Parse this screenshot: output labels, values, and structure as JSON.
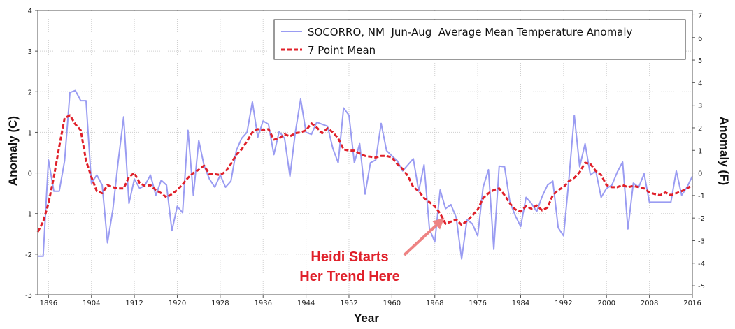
{
  "chart_data": {
    "type": "line",
    "xlabel": "Year",
    "ylabel_left": "Anomaly (C)",
    "ylabel_right": "Anomaly (F)",
    "xlim": [
      1894,
      2016
    ],
    "ylim_left": [
      -3,
      4
    ],
    "ylim_right": [
      -5.4,
      7.2
    ],
    "x_ticks": [
      "1896",
      "1904",
      "1912",
      "1920",
      "1928",
      "1936",
      "1944",
      "1952",
      "1960",
      "1968",
      "1976",
      "1984",
      "1992",
      "2000",
      "2008",
      "2016"
    ],
    "y_ticks_left": [
      "4",
      "3",
      "2",
      "1",
      "0",
      "-1",
      "-2",
      "-3"
    ],
    "y_ticks_right": [
      "7",
      "6",
      "5",
      "4",
      "3",
      "2",
      "1",
      "0",
      "-1",
      "-2",
      "-3",
      "-4",
      "-5"
    ],
    "grid": true,
    "legend_position": "top-right",
    "colors": {
      "annual": "#9a9cf2",
      "mean": "#e0202a",
      "zero_line": "#b9b9b9",
      "grid": "#cfcfcf",
      "annotation": "#e0202a",
      "annotation_arrow": "#ee8383"
    },
    "series": [
      {
        "name": "SOCORRO, NM  Jun-Aug  Average Mean Temperature Anomaly",
        "style": "solid",
        "x": [
          1894,
          1895,
          1896,
          1897,
          1898,
          1899,
          1900,
          1901,
          1902,
          1903,
          1904,
          1905,
          1906,
          1907,
          1908,
          1909,
          1910,
          1911,
          1912,
          1913,
          1914,
          1915,
          1916,
          1917,
          1918,
          1919,
          1920,
          1921,
          1922,
          1923,
          1924,
          1925,
          1926,
          1927,
          1928,
          1929,
          1930,
          1931,
          1932,
          1933,
          1934,
          1935,
          1936,
          1937,
          1938,
          1939,
          1940,
          1941,
          1942,
          1943,
          1944,
          1945,
          1946,
          1947,
          1948,
          1949,
          1950,
          1951,
          1952,
          1953,
          1954,
          1955,
          1956,
          1957,
          1958,
          1959,
          1960,
          1961,
          1962,
          1963,
          1964,
          1965,
          1966,
          1967,
          1968,
          1969,
          1970,
          1971,
          1972,
          1973,
          1974,
          1975,
          1976,
          1977,
          1978,
          1979,
          1980,
          1981,
          1982,
          1983,
          1984,
          1985,
          1986,
          1987,
          1988,
          1989,
          1990,
          1991,
          1992,
          1993,
          1994,
          1995,
          1996,
          1997,
          1998,
          1999,
          2000,
          2001,
          2002,
          2003,
          2004,
          2005,
          2006,
          2007,
          2008,
          2009,
          2010,
          2011,
          2012,
          2013,
          2014,
          2015,
          2016
        ],
        "values": [
          -2.05,
          -2.05,
          0.32,
          -0.45,
          -0.45,
          0.3,
          1.98,
          2.03,
          1.78,
          1.78,
          -0.25,
          -0.05,
          -0.3,
          -1.72,
          -0.9,
          0.3,
          1.38,
          -0.75,
          -0.15,
          -0.38,
          -0.3,
          -0.05,
          -0.55,
          -0.18,
          -0.3,
          -1.42,
          -0.82,
          -0.98,
          1.05,
          -0.55,
          0.8,
          0.18,
          -0.15,
          -0.35,
          -0.05,
          -0.35,
          -0.2,
          0.55,
          0.85,
          1.0,
          1.75,
          0.88,
          1.28,
          1.2,
          0.45,
          1.02,
          0.85,
          -0.08,
          1.0,
          1.82,
          1.0,
          0.95,
          1.25,
          1.2,
          1.15,
          0.6,
          0.25,
          1.6,
          1.42,
          0.25,
          0.72,
          -0.52,
          0.25,
          0.32,
          1.22,
          0.55,
          0.42,
          0.3,
          0.05,
          0.2,
          0.35,
          -0.45,
          0.2,
          -1.38,
          -1.7,
          -0.42,
          -0.88,
          -0.78,
          -1.1,
          -2.12,
          -1.15,
          -1.25,
          -1.55,
          -0.35,
          0.08,
          -1.88,
          0.17,
          0.15,
          -0.72,
          -1.05,
          -1.32,
          -0.6,
          -0.75,
          -0.95,
          -0.58,
          -0.3,
          -0.2,
          -1.35,
          -1.55,
          -0.15,
          1.42,
          0.15,
          0.72,
          -0.05,
          0.05,
          -0.6,
          -0.38,
          -0.3,
          0.02,
          0.27,
          -1.38,
          -0.25,
          -0.35,
          -0.02,
          -0.72,
          -0.72,
          -0.72,
          -0.72,
          -0.72,
          0.05,
          -0.55,
          -0.35,
          -0.08
        ]
      },
      {
        "name": "7 Point Mean",
        "style": "dashed",
        "x": [
          1894,
          1895,
          1896,
          1897,
          1898,
          1899,
          1900,
          1901,
          1902,
          1903,
          1904,
          1905,
          1906,
          1907,
          1908,
          1909,
          1910,
          1911,
          1912,
          1913,
          1914,
          1915,
          1916,
          1917,
          1918,
          1919,
          1920,
          1921,
          1922,
          1923,
          1924,
          1925,
          1926,
          1927,
          1928,
          1929,
          1930,
          1931,
          1932,
          1933,
          1934,
          1935,
          1936,
          1937,
          1938,
          1939,
          1940,
          1941,
          1942,
          1943,
          1944,
          1945,
          1946,
          1947,
          1948,
          1949,
          1950,
          1951,
          1952,
          1953,
          1954,
          1955,
          1956,
          1957,
          1958,
          1959,
          1960,
          1961,
          1962,
          1963,
          1964,
          1965,
          1966,
          1967,
          1968,
          1969,
          1970,
          1971,
          1972,
          1973,
          1974,
          1975,
          1976,
          1977,
          1978,
          1979,
          1980,
          1981,
          1982,
          1983,
          1984,
          1985,
          1986,
          1987,
          1988,
          1989,
          1990,
          1991,
          1992,
          1993,
          1994,
          1995,
          1996,
          1997,
          1998,
          1999,
          2000,
          2001,
          2002,
          2003,
          2004,
          2005,
          2006,
          2007,
          2008,
          2009,
          2010,
          2011,
          2012,
          2013,
          2014,
          2015,
          2016
        ],
        "values": [
          -1.45,
          -1.2,
          -0.75,
          -0.1,
          0.65,
          1.35,
          1.42,
          1.2,
          1.05,
          0.3,
          -0.1,
          -0.45,
          -0.5,
          -0.3,
          -0.35,
          -0.38,
          -0.38,
          -0.1,
          0.0,
          -0.25,
          -0.32,
          -0.3,
          -0.42,
          -0.5,
          -0.6,
          -0.52,
          -0.42,
          -0.28,
          -0.12,
          0.0,
          0.08,
          0.18,
          -0.03,
          -0.03,
          -0.05,
          0.03,
          0.22,
          0.45,
          0.58,
          0.78,
          1.0,
          1.08,
          1.05,
          1.08,
          0.82,
          0.85,
          0.95,
          0.9,
          0.98,
          1.0,
          1.05,
          1.22,
          1.12,
          0.98,
          1.1,
          1.0,
          0.85,
          0.58,
          0.55,
          0.55,
          0.48,
          0.42,
          0.4,
          0.38,
          0.42,
          0.42,
          0.38,
          0.22,
          0.1,
          -0.08,
          -0.35,
          -0.45,
          -0.62,
          -0.72,
          -0.82,
          -1.0,
          -1.25,
          -1.2,
          -1.15,
          -1.28,
          -1.18,
          -1.05,
          -0.9,
          -0.62,
          -0.5,
          -0.42,
          -0.38,
          -0.55,
          -0.75,
          -0.9,
          -0.95,
          -0.82,
          -0.88,
          -0.8,
          -0.92,
          -0.85,
          -0.55,
          -0.42,
          -0.35,
          -0.2,
          -0.12,
          0.02,
          0.25,
          0.22,
          0.05,
          -0.05,
          -0.3,
          -0.35,
          -0.35,
          -0.3,
          -0.35,
          -0.32,
          -0.35,
          -0.38,
          -0.48,
          -0.52,
          -0.55,
          -0.48,
          -0.55,
          -0.5,
          -0.45,
          -0.38,
          -0.3
        ]
      }
    ],
    "annotation": {
      "lines": [
        "Heidi Starts",
        "Her Trend Here"
      ],
      "points_to_year": 1969
    }
  }
}
